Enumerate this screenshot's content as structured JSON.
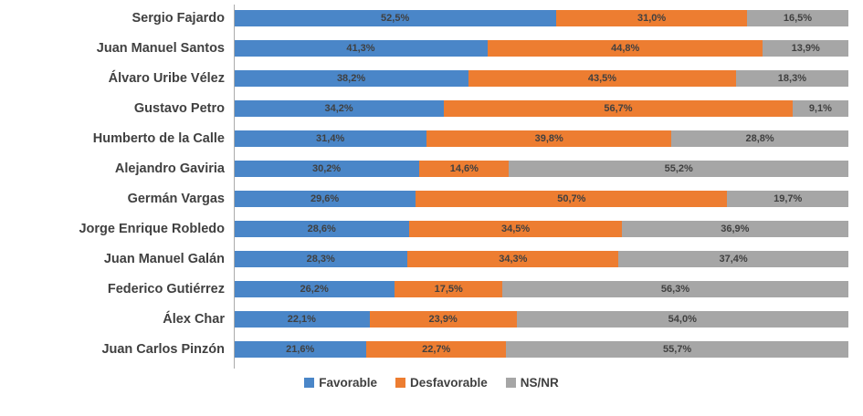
{
  "chart_data": {
    "type": "bar",
    "orientation": "horizontal",
    "stacked": true,
    "stack_total": 100,
    "value_format": "percent_comma_decimal",
    "grid": false,
    "legend_position": "bottom",
    "axis_line_color": "#ababab",
    "label_color": "#404040",
    "categories": [
      "Sergio Fajardo",
      "Juan Manuel Santos",
      "Álvaro Uribe Vélez",
      "Gustavo Petro",
      "Humberto de la Calle",
      "Alejandro Gaviria",
      "Germán Vargas",
      "Jorge Enrique Robledo",
      "Juan Manuel Galán",
      "Federico Gutiérrez",
      "Álex Char",
      "Juan Carlos Pinzón"
    ],
    "series": [
      {
        "name": "Favorable",
        "color": "#4a86c8",
        "values": [
          52.5,
          41.3,
          38.2,
          34.2,
          31.4,
          30.2,
          29.6,
          28.6,
          28.3,
          26.2,
          22.1,
          21.6
        ]
      },
      {
        "name": "Desfavorable",
        "color": "#ed7d31",
        "values": [
          31.0,
          44.8,
          43.5,
          56.7,
          39.8,
          14.6,
          50.7,
          34.5,
          34.3,
          17.5,
          23.9,
          22.7
        ]
      },
      {
        "name": "NS/NR",
        "color": "#a6a6a6",
        "values": [
          16.5,
          13.9,
          18.3,
          9.1,
          28.8,
          55.2,
          19.7,
          36.9,
          37.4,
          56.3,
          54.0,
          55.7
        ]
      }
    ]
  }
}
